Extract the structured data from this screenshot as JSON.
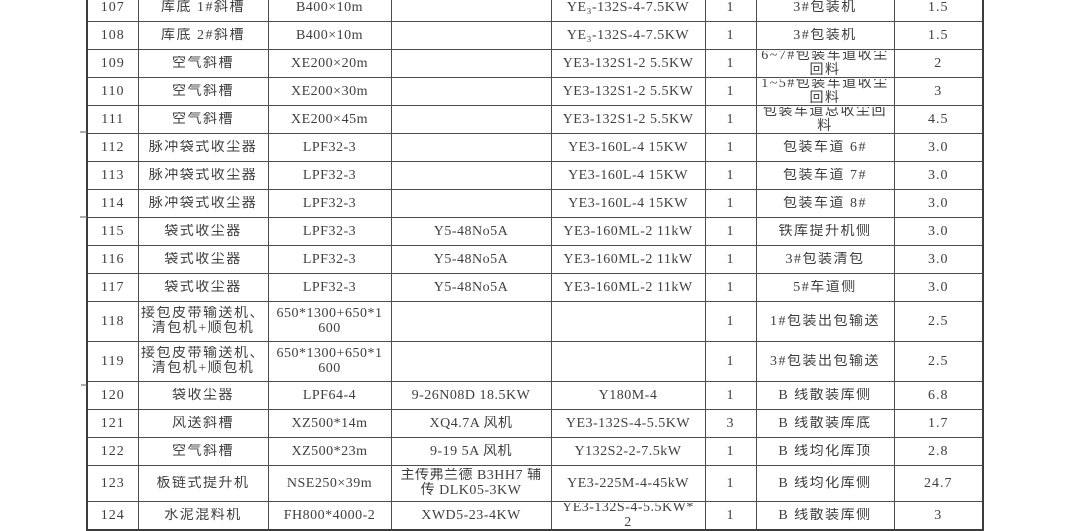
{
  "table": {
    "rows": [
      {
        "no": "107",
        "name": "库底 1#斜槽",
        "spec": "B400×10m",
        "aux": "",
        "motor": "YE₃-132S-4-7.5KW",
        "qty": "1",
        "location": "3#包装机",
        "power": "1.5"
      },
      {
        "no": "108",
        "name": "库底 2#斜槽",
        "spec": "B400×10m",
        "aux": "",
        "motor": "YE₃-132S-4-7.5KW",
        "qty": "1",
        "location": "3#包装机",
        "power": "1.5"
      },
      {
        "no": "109",
        "name": "空气斜槽",
        "spec": "XE200×20m",
        "aux": "",
        "motor": "YE3-132S1-2 5.5KW",
        "qty": "1",
        "location": "6~7#包装车道收尘\n回料",
        "power": "2"
      },
      {
        "no": "110",
        "name": "空气斜槽",
        "spec": "XE200×30m",
        "aux": "",
        "motor": "YE3-132S1-2 5.5KW",
        "qty": "1",
        "location": "1~5#包装车道收尘\n回料",
        "power": "3"
      },
      {
        "no": "111",
        "name": "空气斜槽",
        "spec": "XE200×45m",
        "aux": "",
        "motor": "YE3-132S1-2 5.5KW",
        "qty": "1",
        "location": "包装车道总收尘回\n料",
        "power": "4.5"
      },
      {
        "no": "112",
        "name": "脉冲袋式收尘器",
        "spec": "LPF32-3",
        "aux": "",
        "motor": "YE3-160L-4 15KW",
        "qty": "1",
        "location": "包装车道 6#",
        "power": "3.0"
      },
      {
        "no": "113",
        "name": "脉冲袋式收尘器",
        "spec": "LPF32-3",
        "aux": "",
        "motor": "YE3-160L-4 15KW",
        "qty": "1",
        "location": "包装车道 7#",
        "power": "3.0"
      },
      {
        "no": "114",
        "name": "脉冲袋式收尘器",
        "spec": "LPF32-3",
        "aux": "",
        "motor": "YE3-160L-4 15KW",
        "qty": "1",
        "location": "包装车道 8#",
        "power": "3.0"
      },
      {
        "no": "115",
        "name": "袋式收尘器",
        "spec": "LPF32-3",
        "aux": "Y5-48No5A",
        "motor": "YE3-160ML-2 11kW",
        "qty": "1",
        "location": "铁库提升机侧",
        "power": "3.0"
      },
      {
        "no": "116",
        "name": "袋式收尘器",
        "spec": "LPF32-3",
        "aux": "Y5-48No5A",
        "motor": "YE3-160ML-2 11kW",
        "qty": "1",
        "location": "3#包装清包",
        "power": "3.0"
      },
      {
        "no": "117",
        "name": "袋式收尘器",
        "spec": "LPF32-3",
        "aux": "Y5-48No5A",
        "motor": "YE3-160ML-2 11kW",
        "qty": "1",
        "location": "5#车道侧",
        "power": "3.0"
      },
      {
        "no": "118",
        "name": "接包皮带输送机、\n清包机+顺包机",
        "spec": "650*1300+650*1\n600",
        "aux": "",
        "motor": "",
        "qty": "1",
        "location": "1#包装出包输送",
        "power": "2.5"
      },
      {
        "no": "119",
        "name": "接包皮带输送机、\n清包机+顺包机",
        "spec": "650*1300+650*1\n600",
        "aux": "",
        "motor": "",
        "qty": "1",
        "location": "3#包装出包输送",
        "power": "2.5"
      },
      {
        "no": "120",
        "name": "袋收尘器",
        "spec": "LPF64-4",
        "aux": "9-26N08D 18.5KW",
        "motor": "Y180M-4",
        "qty": "1",
        "location": "B 线散装库侧",
        "power": "6.8"
      },
      {
        "no": "121",
        "name": "风送斜槽",
        "spec": "XZ500*14m",
        "aux": "XQ4.7A 风机",
        "motor": "YE3-132S-4-5.5KW",
        "qty": "3",
        "location": "B 线散装库底",
        "power": "1.7"
      },
      {
        "no": "122",
        "name": "空气斜槽",
        "spec": "XZ500*23m",
        "aux": "9-19 5A 风机",
        "motor": "Y132S2-2-7.5kW",
        "qty": "1",
        "location": "B 线均化库顶",
        "power": "2.8"
      },
      {
        "no": "123",
        "name": "板链式提升机",
        "spec": "NSE250×39m",
        "aux": "主传弗兰德 B3HH7 辅\n传 DLK05-3KW",
        "motor": "YE3-225M-4-45kW",
        "qty": "1",
        "location": "B 线均化库侧",
        "power": "24.7"
      },
      {
        "no": "124",
        "name": "水泥混料机",
        "spec": "FH800*4000-2",
        "aux": "XWD5-23-4KW",
        "motor": "YE3-132S-4-5.5KW*\n2",
        "qty": "1",
        "location": "B 线散装库侧",
        "power": "3"
      }
    ]
  }
}
